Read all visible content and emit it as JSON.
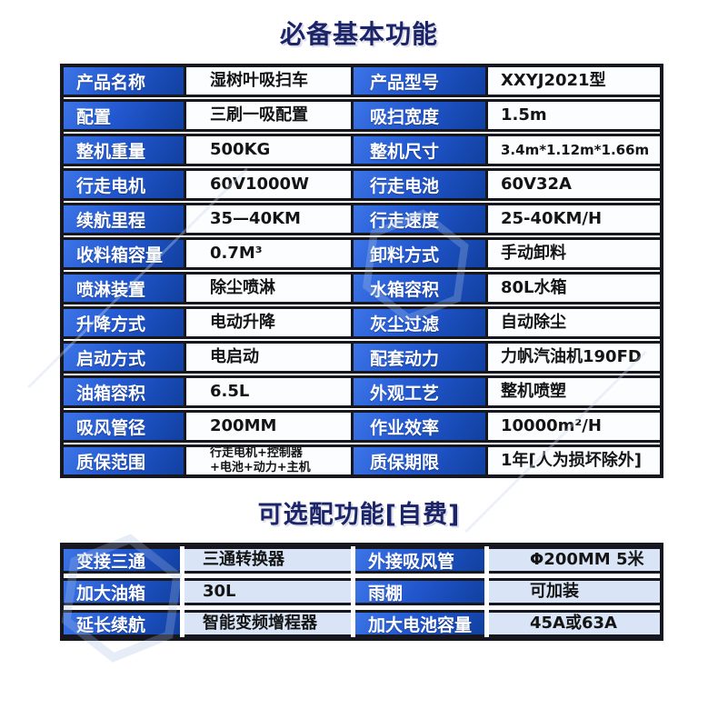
{
  "colors": {
    "title_color": "#1b2468",
    "border_dark": "#17171f",
    "label_blue_light": "#3d76e8",
    "label_blue_dark": "#11409f",
    "value_bg_main": "#fbfdff",
    "value_bg_optional": "#d9e5f6",
    "label_text": "#ffffff",
    "value_text": "#141414"
  },
  "decor": {
    "watermark_icon": "hexagon-outline"
  },
  "sections": [
    {
      "title": "必备基本功能",
      "rows": [
        {
          "label1": "产品名称",
          "value1": "湿树叶吸扫车",
          "label2": "产品型号",
          "value2": "XXYJ2021型"
        },
        {
          "label1": "配置",
          "value1": "三刷一吸配置",
          "label2": "吸扫宽度",
          "value2": "1.5m"
        },
        {
          "label1": "整机重量",
          "value1": "500KG",
          "label2": "整机尺寸",
          "value2": "3.4m*1.12m*1.66m"
        },
        {
          "label1": "行走电机",
          "value1": "60V1000W",
          "label2": "行走电池",
          "value2": "60V32A"
        },
        {
          "label1": "续航里程",
          "value1": "35—40KM",
          "label2": "行走速度",
          "value2": "25-40KM/H"
        },
        {
          "label1": "收料箱容量",
          "value1": "0.7M³",
          "label2": "卸料方式",
          "value2": "手动卸料"
        },
        {
          "label1": "喷淋装置",
          "value1": "除尘喷淋",
          "label2": "水箱容积",
          "value2": "80L水箱"
        },
        {
          "label1": "升降方式",
          "value1": "电动升降",
          "label2": "灰尘过滤",
          "value2": "自动除尘"
        },
        {
          "label1": "启动方式",
          "value1": "电启动",
          "label2": "配套动力",
          "value2": "力帆汽油机190FD"
        },
        {
          "label1": "油箱容积",
          "value1": "6.5L",
          "label2": "外观工艺",
          "value2": "整机喷塑"
        },
        {
          "label1": "吸风管径",
          "value1": "200MM",
          "label2": "作业效率",
          "value2": "10000m²/H"
        },
        {
          "label1": "质保范围",
          "value1": "行走电机+控制器\n+电池+动力+主机",
          "label2": "质保期限",
          "value2": "1年[人为损坏除外]"
        }
      ]
    },
    {
      "title": "可选配功能[自费]",
      "rows": [
        {
          "label1": "变接三通",
          "value1": "三通转换器",
          "label2": "外接吸风管",
          "value2": "Φ200MM 5米"
        },
        {
          "label1": "加大油箱",
          "value1": "30L",
          "label2": "雨棚",
          "value2": "可加装"
        },
        {
          "label1": "延长续航",
          "value1": "智能变频增程器",
          "label2": "加大电池容量",
          "value2": "45A或63A"
        }
      ]
    }
  ]
}
